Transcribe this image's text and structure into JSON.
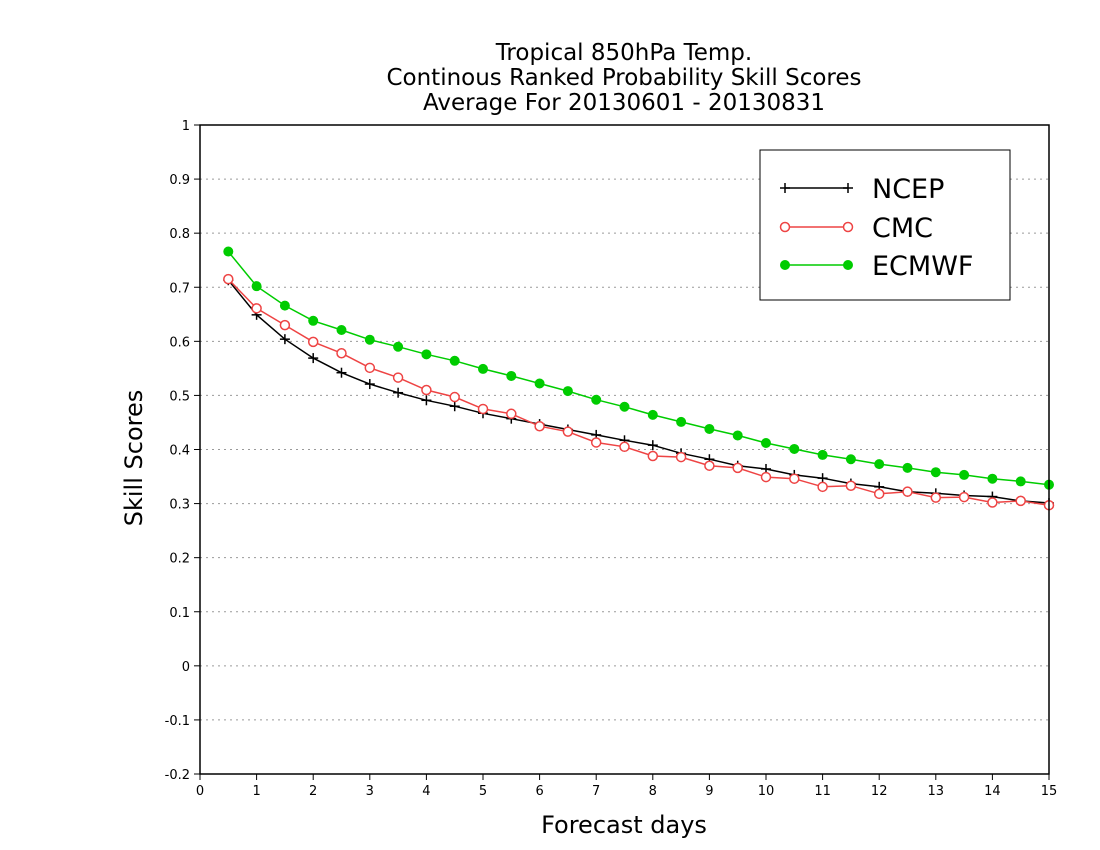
{
  "chart_data": {
    "type": "line",
    "title_lines": [
      "Tropical 850hPa Temp.",
      "Continous Ranked Probability Skill Scores",
      "Average For 20130601 - 20130831"
    ],
    "xlabel": "Forecast days",
    "ylabel": "Skill Scores",
    "xlim": [
      0,
      15
    ],
    "ylim": [
      -0.2,
      1
    ],
    "x_ticks": [
      0,
      1,
      2,
      3,
      4,
      5,
      6,
      7,
      8,
      9,
      10,
      11,
      12,
      13,
      14,
      15
    ],
    "x_tick_labels": [
      "0",
      "1",
      "2",
      "3",
      "4",
      "5",
      "6",
      "7",
      "8",
      "9",
      "10",
      "11",
      "12",
      "13",
      "14",
      "15"
    ],
    "y_ticks": [
      -0.2,
      -0.1,
      0,
      0.1,
      0.2,
      0.3,
      0.4,
      0.5,
      0.6,
      0.7,
      0.8,
      0.9,
      1
    ],
    "y_tick_labels": [
      "-0.2",
      "-0.1",
      "0",
      "0.1",
      "0.2",
      "0.3",
      "0.4",
      "0.5",
      "0.6",
      "0.7",
      "0.8",
      "0.9",
      "1"
    ],
    "grid": "horizontal dotted",
    "legend_position": "top-right",
    "x": [
      0.5,
      1,
      1.5,
      2,
      2.5,
      3,
      3.5,
      4,
      4.5,
      5,
      5.5,
      6,
      6.5,
      7,
      7.5,
      8,
      8.5,
      9,
      9.5,
      10,
      10.5,
      11,
      11.5,
      12,
      12.5,
      13,
      13.5,
      14,
      14.5,
      15
    ],
    "series": [
      {
        "name": "NCEP",
        "color": "#000000",
        "marker": "plus",
        "values": [
          0.713,
          0.649,
          0.604,
          0.569,
          0.542,
          0.521,
          0.505,
          0.491,
          0.48,
          0.467,
          0.457,
          0.447,
          0.437,
          0.427,
          0.417,
          0.408,
          0.393,
          0.382,
          0.37,
          0.364,
          0.353,
          0.347,
          0.337,
          0.331,
          0.322,
          0.319,
          0.315,
          0.313,
          0.305,
          0.301
        ]
      },
      {
        "name": "CMC",
        "color": "#ee4444",
        "marker": "open-circle",
        "values": [
          0.715,
          0.661,
          0.63,
          0.599,
          0.578,
          0.551,
          0.533,
          0.51,
          0.497,
          0.475,
          0.466,
          0.443,
          0.433,
          0.413,
          0.405,
          0.388,
          0.386,
          0.37,
          0.366,
          0.349,
          0.346,
          0.331,
          0.333,
          0.318,
          0.322,
          0.311,
          0.312,
          0.302,
          0.305,
          0.297
        ]
      },
      {
        "name": "ECMWF",
        "color": "#00cc00",
        "marker": "filled-circle",
        "values": [
          0.766,
          0.702,
          0.666,
          0.638,
          0.621,
          0.603,
          0.59,
          0.576,
          0.564,
          0.549,
          0.536,
          0.522,
          0.508,
          0.492,
          0.479,
          0.464,
          0.451,
          0.438,
          0.426,
          0.412,
          0.401,
          0.39,
          0.382,
          0.373,
          0.366,
          0.358,
          0.353,
          0.346,
          0.341,
          0.335
        ]
      }
    ]
  }
}
